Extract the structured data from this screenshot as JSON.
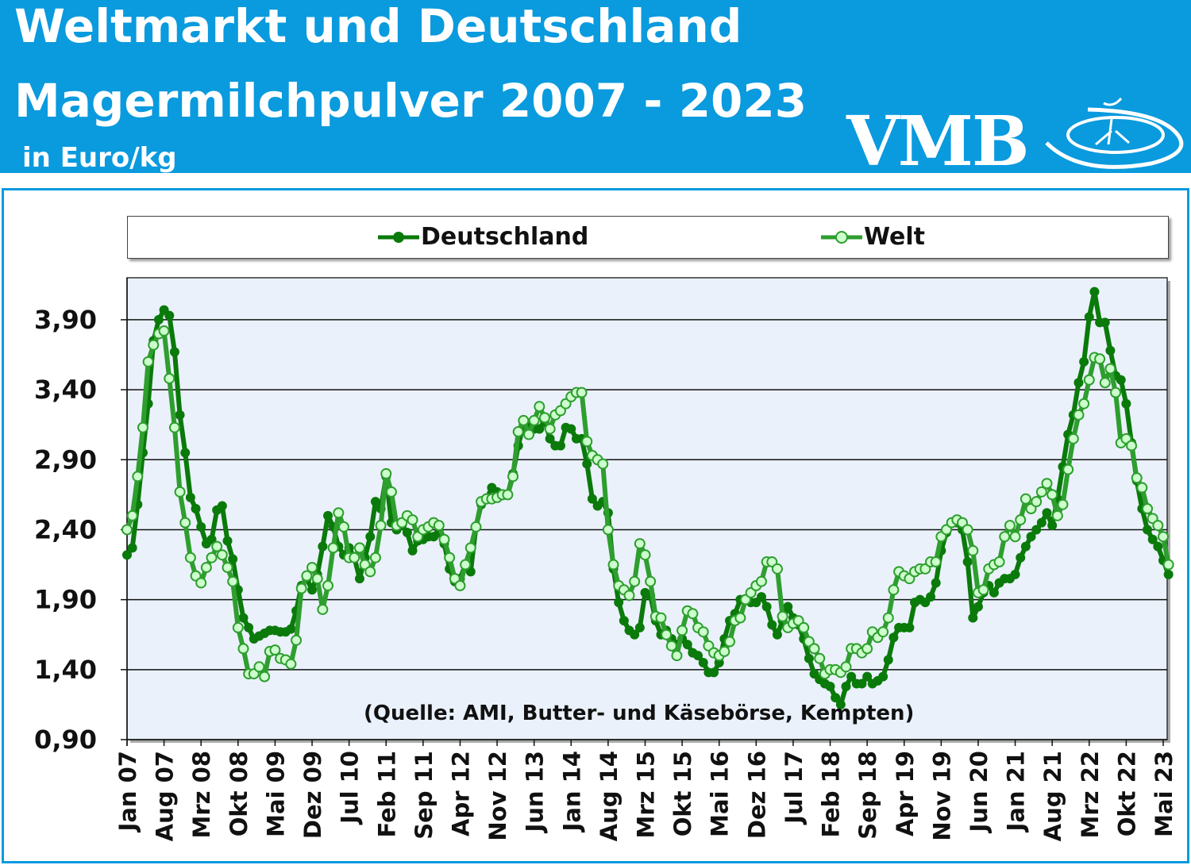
{
  "header": {
    "title_line1": "Weltmarkt und Deutschland",
    "title_line2": "Magermilchpulver 2007 - 2023",
    "unit": "in Euro/kg",
    "logo_text": "VMB",
    "background_color": "#0a9ade"
  },
  "source_note": "(Quelle: AMI, Butter- und Käsebörse, Kempten)",
  "chart_data": {
    "type": "line",
    "ylabel": "in Euro/kg",
    "ylim": [
      0.9,
      4.2
    ],
    "yticks": [
      "0,90",
      "1,40",
      "1,90",
      "2,40",
      "2,90",
      "3,40",
      "3,90"
    ],
    "ytick_values": [
      0.9,
      1.4,
      1.9,
      2.4,
      2.9,
      3.4,
      3.9
    ],
    "x_start": "Jan 07",
    "x_interval": "monthly",
    "xtick_every_months": 7,
    "xticks": [
      "Jan 07",
      "Aug 07",
      "Mrz 08",
      "Okt 08",
      "Mai 09",
      "Dez 09",
      "Jul 10",
      "Feb 11",
      "Sep 11",
      "Apr 12",
      "Nov 12",
      "Jun 13",
      "Jan 14",
      "Aug 14",
      "Mrz 15",
      "Okt 15",
      "Mai 16",
      "Dez 16",
      "Jul 17",
      "Feb 18",
      "Sep 18",
      "Apr 19",
      "Nov 19",
      "Jun 20",
      "Jan 21",
      "Aug 21",
      "Mrz 22",
      "Okt 22",
      "Mai 23"
    ],
    "grid": "horizontal",
    "legend": "top",
    "series": [
      {
        "name": "Deutschland",
        "color": "#0a7a0a",
        "marker": "filled",
        "values": [
          2.22,
          2.27,
          2.58,
          2.95,
          3.3,
          3.75,
          3.9,
          3.97,
          3.93,
          3.67,
          3.22,
          2.95,
          2.63,
          2.55,
          2.42,
          2.3,
          2.33,
          2.54,
          2.57,
          2.32,
          2.19,
          1.97,
          1.77,
          1.7,
          1.62,
          1.64,
          1.66,
          1.68,
          1.68,
          1.67,
          1.67,
          1.69,
          1.82,
          2.0,
          2.05,
          1.97,
          2.08,
          2.28,
          2.5,
          2.42,
          2.28,
          2.22,
          2.27,
          2.2,
          2.05,
          2.2,
          2.35,
          2.6,
          2.55,
          2.78,
          2.45,
          2.4,
          2.43,
          2.38,
          2.25,
          2.32,
          2.33,
          2.35,
          2.35,
          2.38,
          2.3,
          2.12,
          2.03,
          2.05,
          2.15,
          2.1,
          2.42,
          2.58,
          2.62,
          2.7,
          2.67,
          2.65,
          2.65,
          2.8,
          3.0,
          3.15,
          3.15,
          3.12,
          3.12,
          3.18,
          3.05,
          3.0,
          3.0,
          3.13,
          3.12,
          3.05,
          3.05,
          2.87,
          2.62,
          2.57,
          2.6,
          2.52,
          2.12,
          1.88,
          1.75,
          1.68,
          1.65,
          1.7,
          1.95,
          1.93,
          1.75,
          1.65,
          1.68,
          1.62,
          1.58,
          1.62,
          1.58,
          1.52,
          1.5,
          1.45,
          1.38,
          1.38,
          1.45,
          1.62,
          1.75,
          1.8,
          1.9,
          1.9,
          1.88,
          1.88,
          1.92,
          1.85,
          1.72,
          1.65,
          1.75,
          1.85,
          1.77,
          1.72,
          1.62,
          1.48,
          1.37,
          1.33,
          1.3,
          1.28,
          1.2,
          1.15,
          1.28,
          1.35,
          1.3,
          1.3,
          1.35,
          1.3,
          1.32,
          1.35,
          1.47,
          1.63,
          1.7,
          1.7,
          1.7,
          1.88,
          1.9,
          1.88,
          1.92,
          2.02,
          2.25,
          2.38,
          2.45,
          2.45,
          2.4,
          2.17,
          1.77,
          1.85,
          1.95,
          2.0,
          1.95,
          2.02,
          2.05,
          2.05,
          2.08,
          2.2,
          2.28,
          2.35,
          2.4,
          2.45,
          2.52,
          2.43,
          2.62,
          2.85,
          3.08,
          3.22,
          3.45,
          3.6,
          3.92,
          4.1,
          3.88,
          3.88,
          3.68,
          3.5,
          3.47,
          3.3,
          3.02,
          2.75,
          2.55,
          2.4,
          2.33,
          2.28,
          2.18,
          2.08
        ]
      },
      {
        "name": "Welt",
        "color": "#2e9e2e",
        "marker": "hollow-light",
        "values": [
          2.4,
          2.5,
          2.78,
          3.13,
          3.6,
          3.72,
          3.8,
          3.82,
          3.48,
          3.13,
          2.67,
          2.45,
          2.2,
          2.07,
          2.02,
          2.13,
          2.2,
          2.28,
          2.22,
          2.13,
          2.03,
          1.7,
          1.55,
          1.37,
          1.37,
          1.42,
          1.35,
          1.53,
          1.54,
          1.48,
          1.47,
          1.44,
          1.61,
          1.98,
          2.07,
          2.13,
          2.05,
          1.83,
          2.0,
          2.27,
          2.52,
          2.42,
          2.2,
          2.2,
          2.27,
          2.15,
          2.1,
          2.2,
          2.43,
          2.8,
          2.67,
          2.43,
          2.45,
          2.5,
          2.47,
          2.35,
          2.4,
          2.42,
          2.45,
          2.43,
          2.33,
          2.2,
          2.05,
          2.0,
          2.15,
          2.27,
          2.42,
          2.6,
          2.62,
          2.62,
          2.63,
          2.65,
          2.65,
          2.78,
          3.1,
          3.18,
          3.08,
          3.18,
          3.28,
          3.2,
          3.12,
          3.22,
          3.25,
          3.3,
          3.35,
          3.38,
          3.38,
          3.03,
          2.93,
          2.9,
          2.87,
          2.4,
          2.15,
          2.0,
          1.97,
          1.93,
          2.03,
          2.3,
          2.22,
          2.03,
          1.78,
          1.77,
          1.65,
          1.57,
          1.5,
          1.68,
          1.82,
          1.8,
          1.7,
          1.67,
          1.57,
          1.52,
          1.5,
          1.53,
          1.6,
          1.75,
          1.77,
          1.9,
          1.95,
          2.0,
          2.03,
          2.17,
          2.17,
          2.12,
          1.78,
          1.7,
          1.73,
          1.75,
          1.7,
          1.6,
          1.55,
          1.48,
          1.37,
          1.4,
          1.4,
          1.38,
          1.42,
          1.55,
          1.55,
          1.52,
          1.55,
          1.67,
          1.63,
          1.67,
          1.77,
          1.97,
          2.1,
          2.07,
          2.05,
          2.1,
          2.12,
          2.12,
          2.17,
          2.17,
          2.35,
          2.4,
          2.45,
          2.47,
          2.45,
          2.4,
          2.25,
          1.95,
          1.97,
          2.12,
          2.15,
          2.17,
          2.35,
          2.43,
          2.35,
          2.47,
          2.62,
          2.55,
          2.6,
          2.67,
          2.73,
          2.65,
          2.5,
          2.58,
          2.83,
          3.05,
          3.22,
          3.3,
          3.47,
          3.63,
          3.62,
          3.45,
          3.55,
          3.38,
          3.02,
          3.05,
          3.0,
          2.77,
          2.7,
          2.55,
          2.48,
          2.43,
          2.35,
          2.15
        ]
      }
    ]
  }
}
